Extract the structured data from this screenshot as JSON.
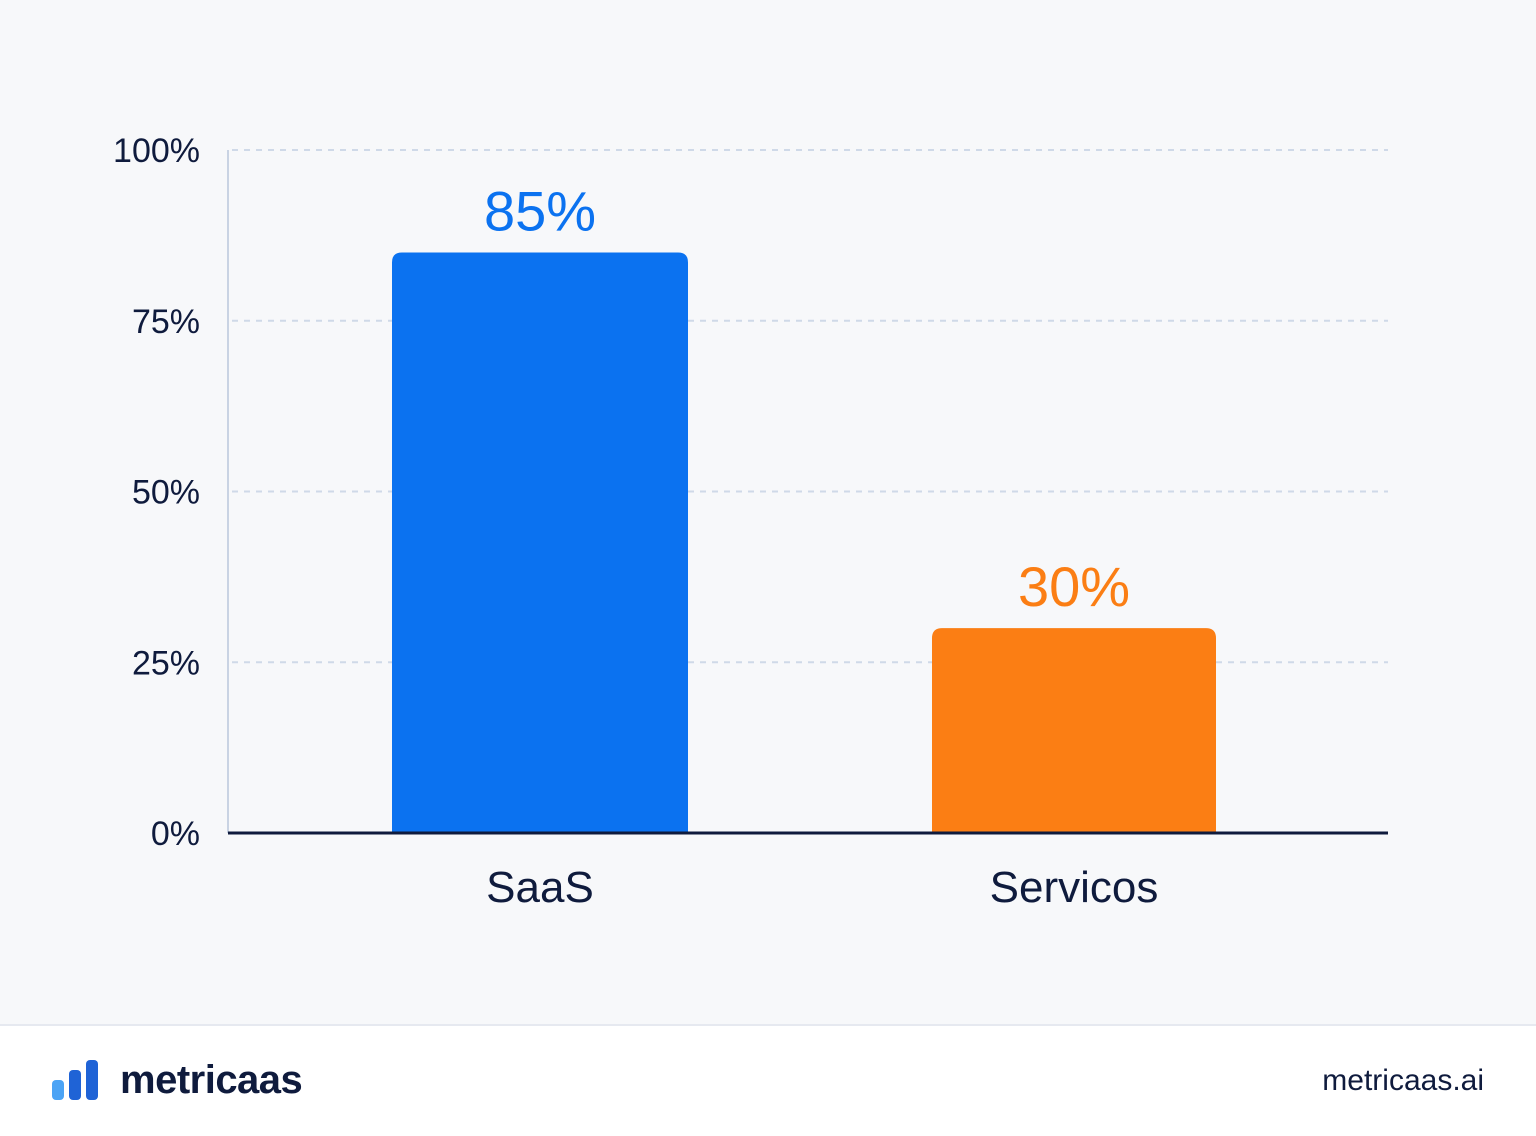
{
  "chart_data": {
    "type": "bar",
    "categories": [
      "SaaS",
      "Servicos"
    ],
    "values": [
      85,
      30
    ],
    "value_labels": [
      "85%",
      "30%"
    ],
    "colors": [
      "#0b72f0",
      "#fb7e14"
    ],
    "title": "",
    "xlabel": "",
    "ylabel": "",
    "ylim": [
      0,
      100
    ],
    "yticks": [
      0,
      25,
      50,
      75,
      100
    ],
    "ytick_labels": [
      "0%",
      "25%",
      "50%",
      "75%",
      "100%"
    ],
    "grid": true,
    "legend": "none"
  },
  "colors": {
    "text": "#0f1b3d",
    "grid": "#cfd9e8",
    "axis": "#0f1b3d",
    "background": "#f7f8fa",
    "logo_light": "#4ba3f5",
    "logo_dark": "#1f63d6"
  },
  "footer": {
    "brand_name": "metricaas",
    "logo_icon": "bar-chart-logo-icon",
    "site_url": "metricaas.ai"
  }
}
